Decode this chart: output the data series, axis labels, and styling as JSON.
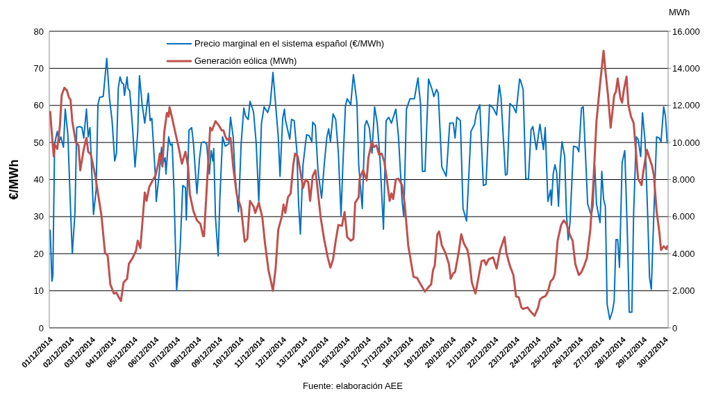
{
  "chart_data": {
    "type": "line",
    "ylabel": "€/MWh",
    "y2label": "MWh",
    "annotations": [
      "Fuente: elaboración AEE"
    ],
    "xlim": [
      "2014-12-01T00:00",
      "2014-12-30T04:00"
    ],
    "xticks": [
      {
        "value": "2014-12-01",
        "label": "01/12/2014"
      },
      {
        "value": "2014-12-02",
        "label": "02/12/2014"
      },
      {
        "value": "2014-12-03",
        "label": "03/12/2014"
      },
      {
        "value": "2014-12-04",
        "label": "04/12/2014"
      },
      {
        "value": "2014-12-05",
        "label": "05/12/2014"
      },
      {
        "value": "2014-12-06",
        "label": "06/12/2014"
      },
      {
        "value": "2014-12-07",
        "label": "07/12/2014"
      },
      {
        "value": "2014-12-08",
        "label": "08/12/2014"
      },
      {
        "value": "2014-12-09",
        "label": "09/12/2014"
      },
      {
        "value": "2014-12-10",
        "label": "10/12/2014"
      },
      {
        "value": "2014-12-11",
        "label": "11/12/2014"
      },
      {
        "value": "2014-12-12",
        "label": "12/12/2014"
      },
      {
        "value": "2014-12-13",
        "label": "13/12/2014"
      },
      {
        "value": "2014-12-14",
        "label": "14/12/2014"
      },
      {
        "value": "2014-12-15",
        "label": "15/12/2014"
      },
      {
        "value": "2014-12-16",
        "label": "16/12/2014"
      },
      {
        "value": "2014-12-17",
        "label": "17/12/2014"
      },
      {
        "value": "2014-12-18",
        "label": "18/12/2014"
      },
      {
        "value": "2014-12-19",
        "label": "19/12/2014"
      },
      {
        "value": "2014-12-20",
        "label": "20/12/2014"
      },
      {
        "value": "2014-12-21",
        "label": "21/12/2014"
      },
      {
        "value": "2014-12-22",
        "label": "22/12/2014"
      },
      {
        "value": "2014-12-23",
        "label": "23/12/2014"
      },
      {
        "value": "2014-12-24",
        "label": "24/12/2014"
      },
      {
        "value": "2014-12-25",
        "label": "25/12/2014"
      },
      {
        "value": "2014-12-26",
        "label": "26/12/2014"
      },
      {
        "value": "2014-12-27",
        "label": "27/12/2014"
      },
      {
        "value": "2014-12-28",
        "label": "28/12/2014"
      },
      {
        "value": "2014-12-29",
        "label": "29/12/2014"
      },
      {
        "value": "2014-12-30",
        "label": "30/12/2014"
      }
    ],
    "ylim": [
      0,
      80
    ],
    "yticks": [
      0,
      10,
      20,
      30,
      40,
      50,
      60,
      70,
      80
    ],
    "y2lim": [
      0,
      16000
    ],
    "y2ticks": [
      {
        "value": 0,
        "label": "0"
      },
      {
        "value": 2000,
        "label": "2.000"
      },
      {
        "value": 4000,
        "label": "4.000"
      },
      {
        "value": 6000,
        "label": "6.000"
      },
      {
        "value": 8000,
        "label": "8.000"
      },
      {
        "value": 10000,
        "label": "10.000"
      },
      {
        "value": 12000,
        "label": "12.000"
      },
      {
        "value": 14000,
        "label": "14.000"
      },
      {
        "value": 16000,
        "label": "16.000"
      }
    ],
    "grid": "y",
    "legend": "top",
    "series": [
      {
        "name": "Precio marginal en el sistema español (€/MWh)",
        "color": "#0070c0",
        "x": [
          "2014-12-01T01:00",
          "2014-12-01T03:00",
          "2014-12-01T04:00",
          "2014-12-01T06:00",
          "2014-12-01T09:00",
          "2014-12-01T11:00",
          "2014-12-01T13:00",
          "2014-12-01T16:00",
          "2014-12-01T18:00",
          "2014-12-01T21:00",
          "2014-12-02T00:00",
          "2014-12-02T02:00",
          "2014-12-02T05:00",
          "2014-12-02T07:00",
          "2014-12-02T10:00",
          "2014-12-02T13:00",
          "2014-12-02T15:00",
          "2014-12-02T18:00",
          "2014-12-02T20:00",
          "2014-12-02T22:00",
          "2014-12-03T02:00",
          "2014-12-03T05:00",
          "2014-12-03T07:00",
          "2014-12-03T09:00",
          "2014-12-03T13:00",
          "2014-12-03T17:00",
          "2014-12-03T20:00",
          "2014-12-03T23:00",
          "2014-12-04T02:00",
          "2014-12-04T04:00",
          "2014-12-04T06:00",
          "2014-12-04T08:00",
          "2014-12-04T10:00",
          "2014-12-04T12:00",
          "2014-12-04T13:00",
          "2014-12-04T16:00",
          "2014-12-04T17:00",
          "2014-12-04T19:00",
          "2014-12-04T22:00",
          "2014-12-05T01:00",
          "2014-12-05T04:00",
          "2014-12-05T06:00",
          "2014-12-05T09:00",
          "2014-12-05T12:00",
          "2014-12-05T16:00",
          "2014-12-05T18:00",
          "2014-12-05T20:00",
          "2014-12-06T00:00",
          "2014-12-06T01:00",
          "2014-12-06T04:00",
          "2014-12-06T07:00",
          "2014-12-06T08:00",
          "2014-12-06T11:00",
          "2014-12-06T12:00",
          "2014-12-06T15:00",
          "2014-12-06T17:00",
          "2014-12-06T19:00",
          "2014-12-06T21:00",
          "2014-12-07T00:00",
          "2014-12-07T04:00",
          "2014-12-07T07:00",
          "2014-12-07T10:00",
          "2014-12-07T11:00",
          "2014-12-07T14:00",
          "2014-12-07T17:00",
          "2014-12-07T19:00",
          "2014-12-07T23:00",
          "2014-12-08T02:00",
          "2014-12-08T04:00",
          "2014-12-08T07:00",
          "2014-12-08T10:00",
          "2014-12-08T13:00",
          "2014-12-08T15:00",
          "2014-12-08T17:00",
          "2014-12-08T18:00",
          "2014-12-08T20:00",
          "2014-12-08T23:00",
          "2014-12-09T01:00",
          "2014-12-09T04:00",
          "2014-12-09T07:00",
          "2014-12-09T11:00",
          "2014-12-09T13:00",
          "2014-12-09T16:00",
          "2014-12-09T18:00",
          "2014-12-09T22:00",
          "2014-12-10T01:00",
          "2014-12-10T04:00",
          "2014-12-10T06:00",
          "2014-12-10T09:00",
          "2014-12-10T11:00",
          "2014-12-10T15:00",
          "2014-12-10T18:00",
          "2014-12-10T21:00",
          "2014-12-11T00:00",
          "2014-12-11T03:00",
          "2014-12-11T07:00",
          "2014-12-11T10:00",
          "2014-12-11T13:00",
          "2014-12-11T16:00",
          "2014-12-11T19:00",
          "2014-12-11T21:00",
          "2014-12-12T00:00",
          "2014-12-12T02:00",
          "2014-12-12T03:00",
          "2014-12-12T08:00",
          "2014-12-12T10:00",
          "2014-12-12T13:00",
          "2014-12-12T16:00",
          "2014-12-12T18:00",
          "2014-12-12T20:00",
          "2014-12-12T23:00",
          "2014-12-13T03:00",
          "2014-12-13T06:00",
          "2014-12-13T09:00",
          "2014-12-13T10:00",
          "2014-12-13T13:00",
          "2014-12-13T16:00",
          "2014-12-13T20:00",
          "2014-12-13T23:00",
          "2014-12-14T02:00",
          "2014-12-14T04:00",
          "2014-12-14T06:00",
          "2014-12-14T09:00",
          "2014-12-14T12:00",
          "2014-12-14T15:00",
          "2014-12-14T18:00",
          "2014-12-14T20:00",
          "2014-12-14T23:00",
          "2014-12-15T01:00",
          "2014-12-15T05:00",
          "2014-12-15T08:00",
          "2014-12-15T12:00",
          "2014-12-15T14:00",
          "2014-12-15T18:00",
          "2014-12-15T21:00",
          "2014-12-15T23:00",
          "2014-12-16T02:00",
          "2014-12-16T05:00",
          "2014-12-16T08:00",
          "2014-12-16T11:00",
          "2014-12-16T14:00",
          "2014-12-16T18:00",
          "2014-12-16T21:00",
          "2014-12-17T00:00",
          "2014-12-17T03:00",
          "2014-12-17T08:00",
          "2014-12-17T11:00",
          "2014-12-17T15:00",
          "2014-12-17T17:00",
          "2014-12-17T20:00",
          "2014-12-18T00:00",
          "2014-12-18T05:00",
          "2014-12-18T09:00",
          "2014-12-18T12:00",
          "2014-12-18T14:00",
          "2014-12-18T17:00",
          "2014-12-18T21:00",
          "2014-12-19T01:00",
          "2014-12-19T03:00",
          "2014-12-19T06:00",
          "2014-12-19T08:00",
          "2014-12-19T12:00",
          "2014-12-19T17:00",
          "2014-12-19T21:00",
          "2014-12-20T01:00",
          "2014-12-20T03:00",
          "2014-12-20T05:00",
          "2014-12-20T09:00",
          "2014-12-20T12:00",
          "2014-12-20T16:00",
          "2014-12-20T18:00",
          "2014-12-20T21:00",
          "2014-12-21T01:00",
          "2014-12-21T03:00",
          "2014-12-21T07:00",
          "2014-12-21T11:00",
          "2014-12-21T14:00",
          "2014-12-21T18:00",
          "2014-12-21T22:00",
          "2014-12-22T02:00",
          "2014-12-22T05:00",
          "2014-12-22T07:00",
          "2014-12-22T12:00",
          "2014-12-22T14:00",
          "2014-12-22T17:00",
          "2014-12-22T21:00",
          "2014-12-23T00:00",
          "2014-12-23T04:00",
          "2014-12-23T05:00",
          "2014-12-23T08:00",
          "2014-12-23T11:00",
          "2014-12-23T14:00",
          "2014-12-23T17:00",
          "2014-12-23T19:00",
          "2014-12-23T23:00",
          "2014-12-24T03:00",
          "2014-12-24T07:00",
          "2014-12-24T09:00",
          "2014-12-24T12:00",
          "2014-12-24T15:00",
          "2014-12-24T16:00",
          "2014-12-24T18:00",
          "2014-12-24T20:00",
          "2014-12-24T22:00",
          "2014-12-25T00:00",
          "2014-12-25T02:00",
          "2014-12-25T04:00",
          "2014-12-25T07:00",
          "2014-12-25T09:00",
          "2014-12-25T11:00",
          "2014-12-25T13:00",
          "2014-12-25T17:00",
          "2014-12-25T21:00",
          "2014-12-25T23:00",
          "2014-12-26T02:00",
          "2014-12-26T04:00",
          "2014-12-26T06:00",
          "2014-12-26T09:00",
          "2014-12-26T13:00",
          "2014-12-26T15:00",
          "2014-12-26T17:00",
          "2014-12-26T19:00",
          "2014-12-26T23:00",
          "2014-12-27T01:00",
          "2014-12-27T03:00",
          "2014-12-27T05:00",
          "2014-12-27T07:00",
          "2014-12-27T10:00",
          "2014-12-27T13:00",
          "2014-12-27T15:00",
          "2014-12-27T17:00",
          "2014-12-27T19:00",
          "2014-12-27T21:00",
          "2014-12-28T00:00",
          "2014-12-28T03:00",
          "2014-12-28T06:00",
          "2014-12-28T08:00",
          "2014-12-28T11:00",
          "2014-12-28T13:00",
          "2014-12-28T16:00",
          "2014-12-28T18:00",
          "2014-12-28T21:00",
          "2014-12-28T23:00",
          "2014-12-29T02:00",
          "2014-12-29T05:00",
          "2014-12-29T07:00",
          "2014-12-29T09:00",
          "2014-12-29T12:00",
          "2014-12-29T15:00",
          "2014-12-29T18:00",
          "2014-12-29T20:00",
          "2014-12-29T23:00",
          "2014-12-30T01:00",
          "2014-12-30T03:00"
        ],
        "values": [
          26.3,
          12.6,
          14.1,
          49.6,
          53,
          50.2,
          51.5,
          48.7,
          59,
          52.1,
          32.2,
          20,
          31,
          54,
          54.3,
          54,
          51.2,
          59,
          51.5,
          54,
          30.6,
          37.2,
          60.2,
          62.2,
          62.4,
          72.7,
          62.1,
          55.9,
          45,
          47.1,
          64.6,
          67.7,
          66.1,
          65.8,
          62.7,
          67.7,
          64.6,
          63.9,
          54.6,
          43.4,
          52.7,
          68,
          60.2,
          55.2,
          63.3,
          55.9,
          56.5,
          40.9,
          34.1,
          40.9,
          48.7,
          44,
          45.9,
          41.5,
          51.5,
          49.3,
          49.6,
          37.2,
          10.1,
          21.6,
          38.4,
          37.8,
          29.1,
          53.3,
          54,
          49.9,
          36.2,
          45.9,
          49.9,
          50.2,
          49.6,
          41.5,
          47.8,
          45,
          48.4,
          29.7,
          19.4,
          35.3,
          51.5,
          49,
          49.6,
          56.8,
          51.5,
          41.5,
          31.3,
          49.6,
          59.3,
          57.1,
          56.2,
          61.1,
          58.3,
          49.9,
          34.1,
          55.2,
          59.6,
          58.1,
          60.5,
          68.9,
          60.2,
          51.5,
          40.9,
          56.5,
          59,
          56.2,
          50.9,
          56.2,
          55.9,
          47.8,
          33.4,
          25.3,
          44,
          52.1,
          51.8,
          50.2,
          55.5,
          54.6,
          42.2,
          35,
          44,
          51.5,
          53.7,
          50.2,
          57.7,
          56.2,
          47.1,
          30.3,
          43.4,
          59.9,
          61.8,
          60.2,
          68.3,
          60.8,
          44,
          32.2,
          54.6,
          55.9,
          54,
          47.1,
          59.6,
          55.2,
          45.9,
          26.6,
          55.9,
          56.8,
          55.2,
          59,
          51.5,
          34.4,
          30,
          59,
          61.8,
          61.8,
          67.4,
          60.2,
          42.2,
          42.2,
          67.1,
          64.3,
          62.4,
          64.3,
          63.3,
          43.4,
          40.9,
          55.2,
          55.2,
          51.2,
          56.8,
          55.9,
          32.2,
          28.8,
          38.4,
          53,
          54.9,
          57.7,
          60.2,
          38.4,
          38.7,
          60.2,
          59.3,
          57.4,
          65.5,
          62.1,
          41.2,
          41.5,
          60.5,
          59.6,
          58,
          67.1,
          66.8,
          64.3,
          40.3,
          40,
          53.4,
          54.3,
          48.1,
          54.9,
          48.1,
          54,
          34.1,
          37.2,
          33.1,
          41.5,
          44,
          41.8,
          32.8,
          44.6,
          50.2,
          46.2,
          30.9,
          23.7,
          28.4,
          49,
          48.7,
          47.5,
          59.3,
          59.6,
          49.6,
          33.4,
          30.3,
          32.8,
          44,
          33.4,
          28.4,
          42.2,
          34.7,
          32.8,
          6.4,
          2.3,
          4.5,
          7.3,
          23.8,
          23.8,
          16.3,
          44.6,
          47.8,
          24.7,
          4.2,
          4.2,
          30.9,
          51.5,
          50.9,
          46.2,
          58,
          50.2,
          29.7,
          13.5,
          10.4,
          31.6,
          51.5,
          51.2,
          50.2,
          59.6,
          57.1,
          49.9
        ]
      },
      {
        "name": "Generación eólica (MWh)",
        "color": "#c0504d",
        "axis": "y2",
        "x": [
          "2014-12-01T01:00",
          "2014-12-01T03:00",
          "2014-12-01T05:00",
          "2014-12-01T06:00",
          "2014-12-01T09:00",
          "2014-12-01T12:00",
          "2014-12-01T14:00",
          "2014-12-01T17:00",
          "2014-12-01T20:00",
          "2014-12-01T22:00",
          "2014-12-02T00:00",
          "2014-12-02T02:00",
          "2014-12-02T06:00",
          "2014-12-02T09:00",
          "2014-12-02T11:00",
          "2014-12-02T15:00",
          "2014-12-02T18:00",
          "2014-12-02T20:00",
          "2014-12-02T23:00",
          "2014-12-03T04:00",
          "2014-12-03T11:00",
          "2014-12-03T15:00",
          "2014-12-03T18:00",
          "2014-12-03T21:00",
          "2014-12-04T01:00",
          "2014-12-04T04:00",
          "2014-12-04T06:00",
          "2014-12-04T09:00",
          "2014-12-04T12:00",
          "2014-12-04T16:00",
          "2014-12-04T18:00",
          "2014-12-04T22:00",
          "2014-12-05T02:00",
          "2014-12-05T04:00",
          "2014-12-05T07:00",
          "2014-12-05T12:00",
          "2014-12-05T14:00",
          "2014-12-05T17:00",
          "2014-12-05T22:00",
          "2014-12-06T00:00",
          "2014-12-06T03:00",
          "2014-12-06T05:00",
          "2014-12-06T08:00",
          "2014-12-06T10:00",
          "2014-12-06T13:00",
          "2014-12-06T15:00",
          "2014-12-06T16:00",
          "2014-12-06T19:00",
          "2014-12-06T22:00",
          "2014-12-07T02:00",
          "2014-12-07T06:00",
          "2014-12-07T10:00",
          "2014-12-07T13:00",
          "2014-12-07T15:00",
          "2014-12-07T19:00",
          "2014-12-07T23:00",
          "2014-12-08T03:00",
          "2014-12-08T06:00",
          "2014-12-08T07:00",
          "2014-12-08T10:00",
          "2014-12-08T14:00",
          "2014-12-08T16:00",
          "2014-12-08T20:00",
          "2014-12-09T00:00",
          "2014-12-09T03:00",
          "2014-12-09T05:00",
          "2014-12-09T07:00",
          "2014-12-09T09:00",
          "2014-12-09T13:00",
          "2014-12-09T16:00",
          "2014-12-09T20:00",
          "2014-12-10T01:00",
          "2014-12-10T05:00",
          "2014-12-10T08:00",
          "2014-12-10T11:00",
          "2014-12-10T15:00",
          "2014-12-10T17:00",
          "2014-12-10T21:00",
          "2014-12-11T01:00",
          "2014-12-11T04:00",
          "2014-12-11T08:00",
          "2014-12-11T11:00",
          "2014-12-11T13:00",
          "2014-12-11T16:00",
          "2014-12-11T19:00",
          "2014-12-11T23:00",
          "2014-12-12T01:00",
          "2014-12-12T03:00",
          "2014-12-12T06:00",
          "2014-12-12T09:00",
          "2014-12-12T12:00",
          "2014-12-12T14:00",
          "2014-12-12T17:00",
          "2014-12-12T20:00",
          "2014-12-12T23:00",
          "2014-12-13T02:00",
          "2014-12-13T05:00",
          "2014-12-13T07:00",
          "2014-12-13T10:00",
          "2014-12-13T13:00",
          "2014-12-13T15:00",
          "2014-12-13T19:00",
          "2014-12-13T23:00",
          "2014-12-14T03:00",
          "2014-12-14T06:00",
          "2014-12-14T09:00",
          "2014-12-14T12:00",
          "2014-12-14T15:00",
          "2014-12-14T19:00",
          "2014-12-14T22:00",
          "2014-12-15T01:00",
          "2014-12-15T05:00",
          "2014-12-15T08:00",
          "2014-12-15T10:00",
          "2014-12-15T14:00",
          "2014-12-15T15:00",
          "2014-12-15T19:00",
          "2014-12-15T23:00",
          "2014-12-16T01:00",
          "2014-12-16T05:00",
          "2014-12-16T07:00",
          "2014-12-16T10:00",
          "2014-12-16T13:00",
          "2014-12-16T16:00",
          "2014-12-16T19:00",
          "2014-12-16T22:00",
          "2014-12-17T01:00",
          "2014-12-17T03:00",
          "2014-12-17T05:00",
          "2014-12-17T08:00",
          "2014-12-17T11:00",
          "2014-12-17T15:00",
          "2014-12-17T18:00",
          "2014-12-17T22:00",
          "2014-12-18T04:00",
          "2014-12-18T08:00",
          "2014-12-18T12:00",
          "2014-12-18T17:00",
          "2014-12-18T21:00",
          "2014-12-19T00:00",
          "2014-12-19T02:00",
          "2014-12-19T04:00",
          "2014-12-19T07:00",
          "2014-12-19T09:00",
          "2014-12-19T12:00",
          "2014-12-19T16:00",
          "2014-12-19T20:00",
          "2014-12-19T22:00",
          "2014-12-20T01:00",
          "2014-12-20T03:00",
          "2014-12-20T07:00",
          "2014-12-20T10:00",
          "2014-12-20T13:00",
          "2014-12-20T17:00",
          "2014-12-20T19:00",
          "2014-12-20T22:00",
          "2014-12-21T02:00",
          "2014-12-21T06:00",
          "2014-12-21T09:00",
          "2014-12-21T12:00",
          "2014-12-21T14:00",
          "2014-12-21T17:00",
          "2014-12-21T22:00",
          "2014-12-22T02:00",
          "2014-12-22T06:00",
          "2014-12-22T11:00",
          "2014-12-22T13:00",
          "2014-12-22T17:00",
          "2014-12-22T21:00",
          "2014-12-23T00:00",
          "2014-12-23T03:00",
          "2014-12-23T06:00",
          "2014-12-23T08:00",
          "2014-12-23T13:00",
          "2014-12-23T17:00",
          "2014-12-23T21:00",
          "2014-12-24T01:00",
          "2014-12-24T03:00",
          "2014-12-24T06:00",
          "2014-12-24T09:00",
          "2014-12-24T12:00",
          "2014-12-24T15:00",
          "2014-12-24T18:00",
          "2014-12-24T20:00",
          "2014-12-24T23:00",
          "2014-12-25T03:00",
          "2014-12-25T06:00",
          "2014-12-25T09:00",
          "2014-12-25T13:00",
          "2014-12-25T16:00",
          "2014-12-25T19:00",
          "2014-12-25T23:00",
          "2014-12-26T02:00",
          "2014-12-26T05:00",
          "2014-12-26T08:00",
          "2014-12-26T12:00",
          "2014-12-26T15:00",
          "2014-12-26T19:00",
          "2014-12-26T23:00",
          "2014-12-27T03:00",
          "2014-12-27T05:00",
          "2014-12-27T08:00",
          "2014-12-27T11:00",
          "2014-12-27T13:00",
          "2014-12-27T15:00",
          "2014-12-27T17:00",
          "2014-12-27T19:00",
          "2014-12-27T22:00",
          "2014-12-28T00:00",
          "2014-12-28T02:00",
          "2014-12-28T05:00",
          "2014-12-28T07:00",
          "2014-12-28T10:00",
          "2014-12-28T13:00",
          "2014-12-28T15:00",
          "2014-12-28T18:00",
          "2014-12-28T22:00",
          "2014-12-29T00:00",
          "2014-12-29T04:00",
          "2014-12-29T06:00",
          "2014-12-29T10:00",
          "2014-12-29T12:00",
          "2014-12-29T15:00",
          "2014-12-29T18:00",
          "2014-12-29T20:00",
          "2014-12-29T23:00",
          "2014-12-30T02:00",
          "2014-12-30T03:00"
        ],
        "values": [
          11650,
          10400,
          9250,
          9900,
          9650,
          10900,
          12550,
          12950,
          12800,
          12450,
          12300,
          11150,
          10000,
          9850,
          8500,
          9650,
          10250,
          9500,
          9350,
          8200,
          6050,
          4050,
          3900,
          2350,
          1850,
          1900,
          1700,
          1450,
          2450,
          2650,
          3450,
          3750,
          4150,
          4700,
          4300,
          7300,
          6850,
          7600,
          8050,
          8200,
          8800,
          9400,
          8700,
          10550,
          11600,
          11400,
          11900,
          11300,
          10650,
          9800,
          8850,
          9500,
          8700,
          7200,
          6300,
          5800,
          5600,
          4950,
          4950,
          7450,
          10800,
          10650,
          11150,
          10900,
          10650,
          10650,
          10350,
          10150,
          10250,
          8700,
          7200,
          6450,
          4650,
          4800,
          6850,
          6550,
          6200,
          6750,
          5950,
          4550,
          3100,
          2450,
          2000,
          3200,
          5300,
          6000,
          6650,
          6200,
          7050,
          7250,
          8800,
          9400,
          9250,
          8450,
          7550,
          8000,
          7850,
          6850,
          8200,
          8500,
          7700,
          5950,
          4750,
          3800,
          3250,
          3700,
          4700,
          5550,
          5500,
          6250,
          4900,
          4700,
          4800,
          6750,
          7050,
          8050,
          8500,
          7950,
          9200,
          10050,
          9750,
          9850,
          9350,
          9400,
          8950,
          7950,
          6850,
          7250,
          6950,
          8000,
          8050,
          7700,
          6700,
          4450,
          2750,
          2700,
          2350,
          1950,
          2200,
          2350,
          3100,
          3350,
          5050,
          5200,
          4450,
          4050,
          3450,
          2650,
          2950,
          3010,
          4050,
          5050,
          4550,
          4200,
          3700,
          2450,
          1850,
          2850,
          3600,
          3650,
          3400,
          3700,
          3800,
          3200,
          4200,
          4900,
          4050,
          3350,
          2850,
          1700,
          1650,
          1100,
          1020,
          1100,
          850,
          650,
          1100,
          1520,
          1650,
          1700,
          1950,
          2500,
          2650,
          2950,
          4700,
          5550,
          5800,
          5600,
          5000,
          4700,
          3450,
          2850,
          3010,
          3350,
          3750,
          5300,
          7450,
          11150,
          13150,
          14950,
          13900,
          12550,
          10800,
          11650,
          12550,
          12750,
          13450,
          12400,
          12150,
          12850,
          13550,
          12050,
          11400,
          11050,
          9900,
          8050,
          7700,
          8450,
          9600,
          9300,
          8700,
          8200,
          6300,
          5200,
          4200,
          4400,
          4250,
          4400
        ]
      }
    ]
  }
}
